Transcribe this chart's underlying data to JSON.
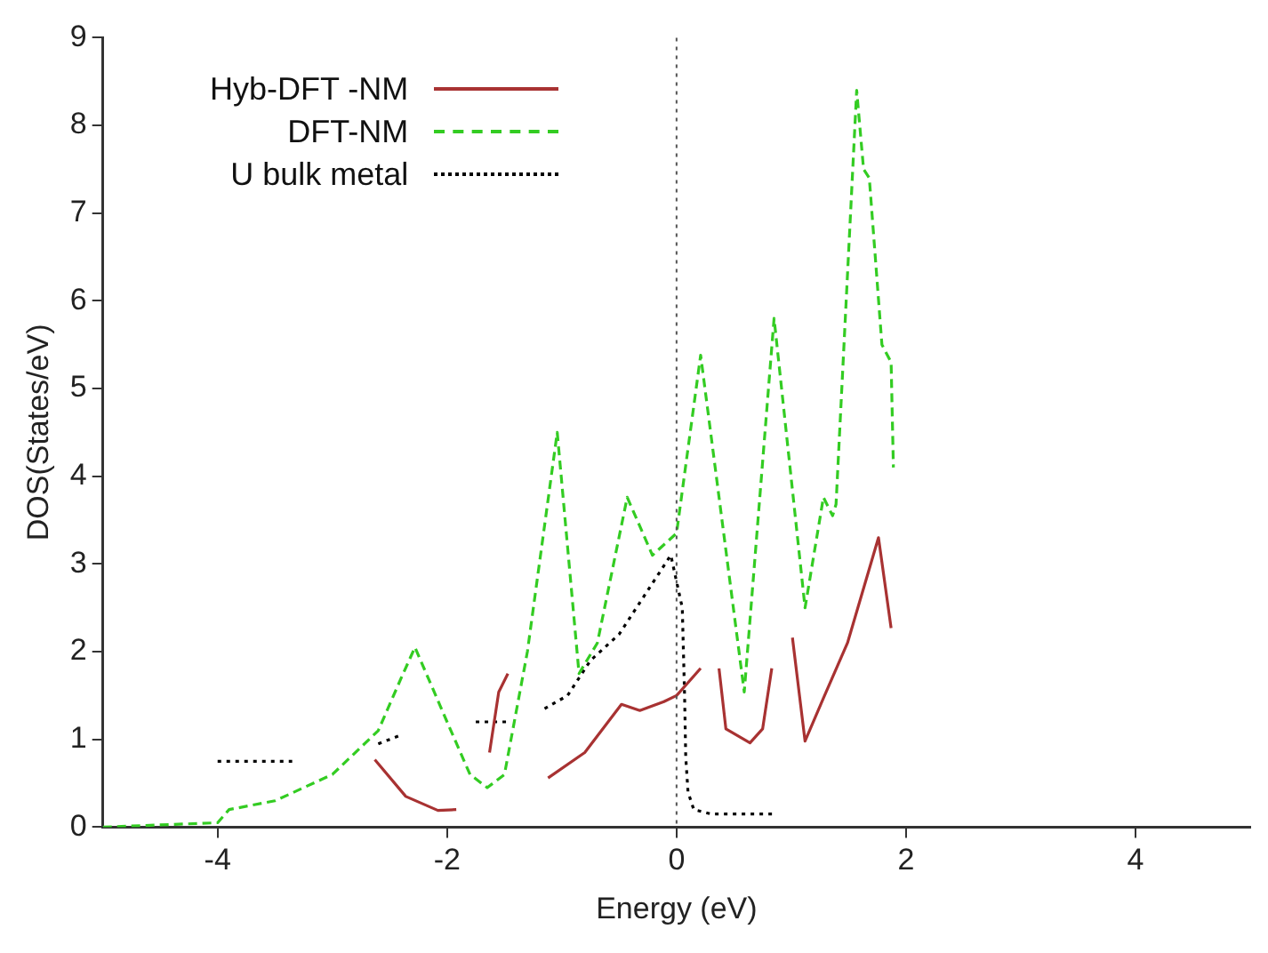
{
  "chart_data": {
    "type": "line",
    "xlabel": "Energy (eV)",
    "ylabel": "DOS(States/eV)",
    "xlim": [
      -5,
      5
    ],
    "xticks": [
      -4,
      -2,
      0,
      2,
      4
    ],
    "ylim": [
      0,
      9
    ],
    "yticks": [
      0,
      1,
      2,
      3,
      4,
      5,
      6,
      7,
      8,
      9
    ],
    "grid": false,
    "legend": "top left",
    "marker": "none",
    "ref_lines": [
      {
        "axis": "x",
        "value": 0,
        "color": "#555555",
        "line_style": "dotted"
      }
    ],
    "series": [
      {
        "name": "Hyb-DFT -NM",
        "color": "#a83232",
        "line_style": "solid",
        "x": [
          -2.63,
          -2.36,
          -2.08,
          -1.92,
          -1.8,
          -1.63,
          -1.55,
          -1.47,
          -1.3,
          -1.12,
          -0.8,
          -0.48,
          -0.32,
          -0.11,
          0,
          0.21,
          0.3,
          0.37,
          0.43,
          0.64,
          0.75,
          0.83,
          0.95,
          1.01,
          1.12,
          1.28,
          1.49,
          1.76,
          1.87
        ],
        "values": [
          0.77,
          0.35,
          0.19,
          0.2,
          null,
          0.85,
          1.54,
          1.75,
          null,
          0.56,
          0.85,
          1.4,
          1.33,
          1.43,
          1.5,
          1.81,
          null,
          1.81,
          1.12,
          0.96,
          1.12,
          1.81,
          null,
          2.16,
          0.98,
          1.47,
          2.1,
          3.3,
          2.27
        ]
      },
      {
        "name": "DFT-NM",
        "color": "#33cc22",
        "line_style": "dashed",
        "x": [
          -5,
          -4,
          -3.9,
          -3.5,
          -3,
          -2.6,
          -2.4,
          -2.28,
          -2,
          -1.8,
          -1.65,
          -1.5,
          -1.3,
          -1.04,
          -0.85,
          -0.69,
          -0.43,
          -0.21,
          0,
          0.21,
          0.59,
          0.85,
          1.12,
          1.28,
          1.36,
          1.39,
          1.57,
          1.63,
          1.68,
          1.79,
          1.87,
          1.89
        ],
        "values": [
          0,
          0.05,
          0.2,
          0.3,
          0.6,
          1.1,
          1.7,
          2.05,
          1.2,
          0.6,
          0.45,
          0.6,
          2,
          4.5,
          1.75,
          2.1,
          3.76,
          3.1,
          3.35,
          5.38,
          1.54,
          5.8,
          2.5,
          3.76,
          3.55,
          3.68,
          8.4,
          7.5,
          7.4,
          5.5,
          5.3,
          4.1
        ]
      },
      {
        "name": "U bulk metal",
        "color": "#000000",
        "line_style": "dotted",
        "x": [
          -4,
          -3.35,
          -3.2,
          -2.6,
          -2.4,
          -2.2,
          -1.75,
          -1.45,
          -1.3,
          -1.15,
          -0.95,
          -0.75,
          -0.5,
          -0.3,
          -0.15,
          -0.05,
          0.05,
          0.07,
          0.08,
          0.1,
          0.15,
          0.3,
          0.85
        ],
        "values": [
          0.75,
          0.75,
          null,
          0.95,
          1.05,
          null,
          1.2,
          1.2,
          null,
          1.35,
          1.5,
          1.9,
          2.2,
          2.6,
          2.9,
          3.1,
          2.5,
          1.5,
          0.8,
          0.4,
          0.2,
          0.15,
          0.15
        ]
      }
    ]
  }
}
